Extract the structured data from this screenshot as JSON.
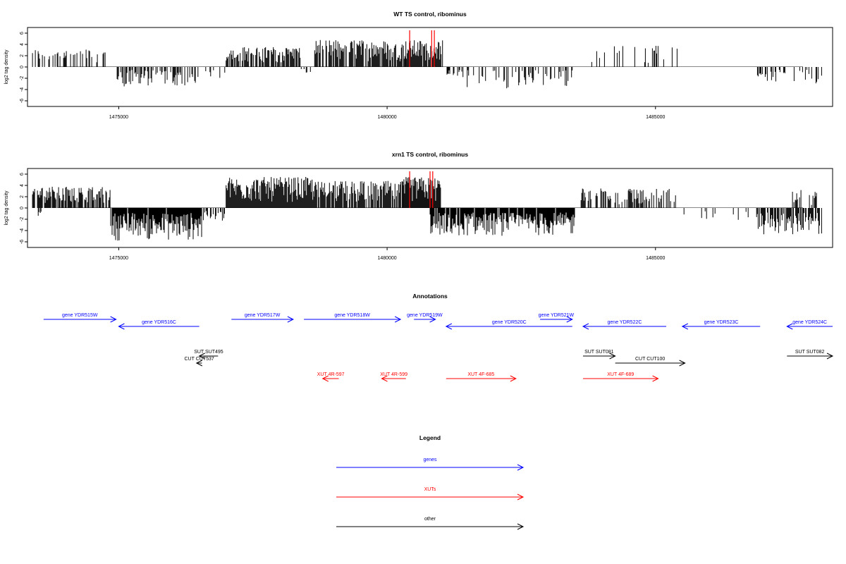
{
  "chart_data": [
    {
      "type": "bar",
      "title": "WT TS control, ribominus",
      "ylabel": "log2 tag density",
      "xlabel": "",
      "xlim": [
        1473300,
        1488300
      ],
      "ylim": [
        -7,
        7
      ],
      "y_ticks": [
        6,
        4,
        2,
        0,
        -2,
        -4,
        -6
      ],
      "x_ticks": [
        1475000,
        1480000,
        1485000
      ],
      "x_tick_labels": [
        "1475000",
        "1480000",
        "1485000"
      ],
      "grid": false,
      "colors": {
        "bars": "#000000",
        "baseline": "#888888",
        "highlight": "#ff0000"
      },
      "segments": [
        {
          "x0": 1473380,
          "x1": 1474750,
          "ymin": 0.8,
          "ymax": 3.2,
          "dir": "up",
          "density": 0.35
        },
        {
          "x0": 1474970,
          "x1": 1476450,
          "ymin": -3.5,
          "ymax": -0.5,
          "dir": "down",
          "density": 0.55
        },
        {
          "x0": 1476450,
          "x1": 1477000,
          "ymin": -2.0,
          "ymax": -0.5,
          "dir": "down",
          "density": 0.15
        },
        {
          "x0": 1477000,
          "x1": 1478400,
          "ymin": 0.8,
          "ymax": 3.6,
          "dir": "up",
          "density": 0.75
        },
        {
          "x0": 1478400,
          "x1": 1478600,
          "ymin": -1.2,
          "ymax": -0.3,
          "dir": "down",
          "density": 0.3
        },
        {
          "x0": 1478650,
          "x1": 1480350,
          "ymin": 1.0,
          "ymax": 4.8,
          "dir": "up",
          "density": 0.75
        },
        {
          "x0": 1480350,
          "x1": 1481050,
          "ymin": 1.0,
          "ymax": 4.8,
          "dir": "up",
          "density": 0.9
        },
        {
          "x0": 1481050,
          "x1": 1481400,
          "ymin": -2.5,
          "ymax": -0.5,
          "dir": "down",
          "density": 0.4
        },
        {
          "x0": 1481400,
          "x1": 1483500,
          "ymin": -3.8,
          "ymax": -0.5,
          "dir": "down",
          "density": 0.35
        },
        {
          "x0": 1483800,
          "x1": 1485600,
          "ymin": 0.5,
          "ymax": 3.9,
          "dir": "up",
          "density": 0.08
        },
        {
          "x0": 1485300,
          "x1": 1485400,
          "ymin": -2.5,
          "ymax": -2.0,
          "dir": "down",
          "density": 0.3
        },
        {
          "x0": 1486900,
          "x1": 1488100,
          "ymin": -3.0,
          "ymax": -0.5,
          "dir": "down",
          "density": 0.35
        }
      ],
      "highlights": [
        {
          "x": 1480420,
          "ymin": 0,
          "ymax": 6.5
        },
        {
          "x": 1480830,
          "ymin": 0,
          "ymax": 6.5
        },
        {
          "x": 1480880,
          "ymin": 0,
          "ymax": 6.5
        }
      ]
    },
    {
      "type": "bar",
      "title": "xrn1 TS control, ribominus",
      "ylabel": "log2 tag density",
      "xlabel": "",
      "xlim": [
        1473300,
        1488300
      ],
      "ylim": [
        -7,
        7
      ],
      "y_ticks": [
        6,
        4,
        2,
        0,
        -2,
        -4,
        -6
      ],
      "x_ticks": [
        1475000,
        1480000,
        1485000
      ],
      "x_tick_labels": [
        "1475000",
        "1480000",
        "1485000"
      ],
      "grid": false,
      "colors": {
        "bars": "#000000",
        "baseline": "#888888",
        "highlight": "#ff0000"
      },
      "segments": [
        {
          "x0": 1473380,
          "x1": 1474850,
          "ymin": 0.8,
          "ymax": 3.8,
          "dir": "up",
          "density": 0.75
        },
        {
          "x0": 1473500,
          "x1": 1473560,
          "ymin": -1.8,
          "ymax": -0.5,
          "dir": "down",
          "density": 0.3
        },
        {
          "x0": 1474850,
          "x1": 1476550,
          "ymin": -5.8,
          "ymax": -0.8,
          "dir": "down",
          "density": 0.95
        },
        {
          "x0": 1476550,
          "x1": 1477000,
          "ymin": -2.5,
          "ymax": -0.5,
          "dir": "down",
          "density": 0.3
        },
        {
          "x0": 1477000,
          "x1": 1478650,
          "ymin": 1.0,
          "ymax": 5.5,
          "dir": "up",
          "density": 1.0
        },
        {
          "x0": 1478650,
          "x1": 1480300,
          "ymin": 0.8,
          "ymax": 4.8,
          "dir": "up",
          "density": 0.8
        },
        {
          "x0": 1480300,
          "x1": 1481000,
          "ymin": 1.0,
          "ymax": 5.5,
          "dir": "up",
          "density": 0.95
        },
        {
          "x0": 1480800,
          "x1": 1483500,
          "ymin": -5.0,
          "ymax": -0.8,
          "dir": "down",
          "density": 0.95
        },
        {
          "x0": 1483600,
          "x1": 1485400,
          "ymin": 0.5,
          "ymax": 3.5,
          "dir": "up",
          "density": 0.5
        },
        {
          "x0": 1485400,
          "x1": 1486900,
          "ymin": -2.5,
          "ymax": -0.5,
          "dir": "down",
          "density": 0.12
        },
        {
          "x0": 1486900,
          "x1": 1488100,
          "ymin": -5.0,
          "ymax": -0.8,
          "dir": "down",
          "density": 0.75
        },
        {
          "x0": 1487500,
          "x1": 1488000,
          "ymin": 0.5,
          "ymax": 3.2,
          "dir": "up",
          "density": 0.4
        }
      ],
      "highlights": [
        {
          "x": 1480420,
          "ymin": 0,
          "ymax": 6.5
        },
        {
          "x": 1480800,
          "ymin": 0,
          "ymax": 6.5
        },
        {
          "x": 1480850,
          "ymin": 0,
          "ymax": 6.5
        }
      ]
    },
    {
      "type": "annotation-track",
      "title": "Annotations",
      "xlim": [
        1473300,
        1488300
      ],
      "features": [
        {
          "label": "gene YDR515W",
          "start": 1473600,
          "end": 1474950,
          "strand": "+",
          "type": "gene",
          "row": 1
        },
        {
          "label": "gene YDR516C",
          "start": 1475000,
          "end": 1476500,
          "strand": "-",
          "type": "gene",
          "row": 2
        },
        {
          "label": "gene YDR517W",
          "start": 1477100,
          "end": 1478250,
          "strand": "+",
          "type": "gene",
          "row": 1
        },
        {
          "label": "gene YDR518W",
          "start": 1478450,
          "end": 1480250,
          "strand": "+",
          "type": "gene",
          "row": 1
        },
        {
          "label": "gene YDR519W",
          "start": 1480500,
          "end": 1480900,
          "strand": "+",
          "type": "gene",
          "row": 1
        },
        {
          "label": "gene YDR520C",
          "start": 1481100,
          "end": 1483450,
          "strand": "-",
          "type": "gene",
          "row": 2
        },
        {
          "label": "gene YDR521W",
          "start": 1482850,
          "end": 1483450,
          "strand": "+",
          "type": "gene",
          "row": 1
        },
        {
          "label": "gene YDR522C",
          "start": 1483650,
          "end": 1485200,
          "strand": "-",
          "type": "gene",
          "row": 2
        },
        {
          "label": "gene YDR523C",
          "start": 1485500,
          "end": 1486950,
          "strand": "-",
          "type": "gene",
          "row": 2
        },
        {
          "label": "gene YDR524C",
          "start": 1487450,
          "end": 1488700,
          "strand": "-",
          "type": "gene",
          "row": 2
        },
        {
          "label": "SUT SUT495",
          "start": 1476500,
          "end": 1476850,
          "strand": "-",
          "type": "other",
          "row": 3
        },
        {
          "label": "CUT CUT537",
          "start": 1476450,
          "end": 1476550,
          "strand": "-",
          "type": "other",
          "row": 4
        },
        {
          "label": "SUT SUT081",
          "start": 1483650,
          "end": 1484250,
          "strand": "+",
          "type": "other",
          "row": 3
        },
        {
          "label": "CUT CUT100",
          "start": 1484250,
          "end": 1485550,
          "strand": "+",
          "type": "other",
          "row": 4
        },
        {
          "label": "SUT SUT082",
          "start": 1487450,
          "end": 1488700,
          "strand": "+",
          "type": "other",
          "row": 3
        },
        {
          "label": "XUT 4R-597",
          "start": 1478800,
          "end": 1479100,
          "strand": "-",
          "type": "XUT",
          "row": 5
        },
        {
          "label": "XUT 4R-599",
          "start": 1479900,
          "end": 1480350,
          "strand": "-",
          "type": "XUT",
          "row": 5
        },
        {
          "label": "XUT 4F-685",
          "start": 1481100,
          "end": 1482400,
          "strand": "+",
          "type": "XUT",
          "row": 5
        },
        {
          "label": "XUT 4F-689",
          "start": 1483650,
          "end": 1485050,
          "strand": "+",
          "type": "XUT",
          "row": 5
        }
      ],
      "colors": {
        "gene": "#0000ff",
        "XUT": "#ff0000",
        "other": "#000000"
      }
    }
  ],
  "legend": {
    "title": "Legend",
    "items": [
      {
        "label": "genes",
        "color": "#0000ff"
      },
      {
        "label": "XUTs",
        "color": "#ff0000"
      },
      {
        "label": "other",
        "color": "#000000"
      }
    ]
  }
}
